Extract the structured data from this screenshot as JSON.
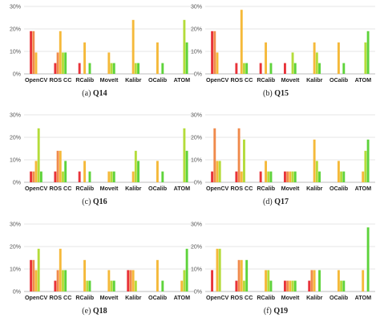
{
  "chart_data": [
    {
      "type": "bar",
      "caption_letter": "(a)",
      "caption_q": "Q14",
      "yticks": [
        "0%",
        "10%",
        "20%",
        "30%"
      ],
      "ylim": [
        0,
        30
      ],
      "categories": [
        "OpenCV",
        "ROS CC",
        "RCalib",
        "MoveIt",
        "Kalibr",
        "OCalib",
        "ATOM"
      ],
      "values": [
        [
          19,
          19,
          9.5,
          0,
          0
        ],
        [
          4.8,
          9.5,
          19,
          9.5,
          9.5
        ],
        [
          4.8,
          0,
          14,
          0,
          4.8
        ],
        [
          0,
          0,
          9.5,
          4.8,
          4.8
        ],
        [
          0,
          0,
          24,
          4.8,
          4.8
        ],
        [
          0,
          0,
          14,
          0,
          4.8
        ],
        [
          0,
          0,
          0,
          24,
          14
        ]
      ]
    },
    {
      "type": "bar",
      "caption_letter": "(b)",
      "caption_q": "Q15",
      "yticks": [
        "0%",
        "10%",
        "20%",
        "30%"
      ],
      "ylim": [
        0,
        30
      ],
      "categories": [
        "OpenCV",
        "ROS CC",
        "RCalib",
        "MoveIt",
        "Kalibr",
        "OCalib",
        "ATOM"
      ],
      "values": [
        [
          19,
          19,
          9.5,
          0,
          0
        ],
        [
          4.8,
          0,
          28.5,
          4.8,
          4.8
        ],
        [
          4.8,
          0,
          14,
          0,
          4.8
        ],
        [
          4.8,
          0,
          0,
          9.5,
          4.8
        ],
        [
          0,
          0,
          14,
          9.5,
          4.8
        ],
        [
          0,
          0,
          14,
          0,
          4.8
        ],
        [
          0,
          0,
          0,
          14,
          19
        ]
      ]
    },
    {
      "type": "bar",
      "caption_letter": "(c)",
      "caption_q": "Q16",
      "yticks": [
        "0%",
        "10%",
        "20%",
        "30%"
      ],
      "ylim": [
        0,
        30
      ],
      "categories": [
        "OpenCV",
        "ROS CC",
        "RCalib",
        "MoveIt",
        "Kalibr",
        "OCalib",
        "ATOM"
      ],
      "values": [
        [
          4.8,
          4.8,
          9.5,
          24,
          4.8
        ],
        [
          4.8,
          14,
          14,
          4.8,
          9.5
        ],
        [
          4.8,
          0,
          9.5,
          0,
          4.8
        ],
        [
          0,
          0,
          4.8,
          4.8,
          4.8
        ],
        [
          0,
          0,
          4.8,
          14,
          9.5
        ],
        [
          0,
          0,
          9.5,
          0,
          4.8
        ],
        [
          0,
          0,
          0,
          24,
          14
        ]
      ]
    },
    {
      "type": "bar",
      "caption_letter": "(d)",
      "caption_q": "Q17",
      "yticks": [
        "0%",
        "10%",
        "20%",
        "30%"
      ],
      "ylim": [
        0,
        30
      ],
      "categories": [
        "OpenCV",
        "ROS CC",
        "RCalib",
        "MoveIt",
        "Kalibr",
        "OCalib",
        "ATOM"
      ],
      "values": [
        [
          4.8,
          24,
          9.5,
          9.5,
          0
        ],
        [
          4.8,
          24,
          4.8,
          19,
          0
        ],
        [
          4.8,
          0,
          9.5,
          4.8,
          4.8
        ],
        [
          4.8,
          4.8,
          4.8,
          4.8,
          4.8
        ],
        [
          0,
          0,
          19,
          9.5,
          4.8
        ],
        [
          0,
          0,
          9.5,
          4.8,
          4.8
        ],
        [
          0,
          0,
          4.8,
          14,
          19
        ]
      ]
    },
    {
      "type": "bar",
      "caption_letter": "(e)",
      "caption_q": "Q18",
      "yticks": [
        "0%",
        "10%",
        "20%",
        "30%"
      ],
      "ylim": [
        0,
        30
      ],
      "categories": [
        "OpenCV",
        "ROS CC",
        "RCalib",
        "MoveIt",
        "Kalibr",
        "OCalib",
        "ATOM"
      ],
      "values": [
        [
          14,
          14,
          9.5,
          19,
          0
        ],
        [
          4.8,
          9.5,
          19,
          9.5,
          9.5
        ],
        [
          0,
          0,
          14,
          4.8,
          4.8
        ],
        [
          0,
          0,
          9.5,
          4.8,
          4.8
        ],
        [
          9.5,
          9.5,
          9.5,
          4.8,
          0
        ],
        [
          0,
          0,
          14,
          0,
          4.8
        ],
        [
          0,
          0,
          4.8,
          9.5,
          19
        ]
      ]
    },
    {
      "type": "bar",
      "caption_letter": "(f)",
      "caption_q": "Q19",
      "yticks": [
        "0%",
        "10%",
        "20%",
        "30%"
      ],
      "ylim": [
        0,
        30
      ],
      "categories": [
        "OpenCV",
        "ROS CC",
        "RCalib",
        "MoveIt",
        "Kalibr",
        "OCalib",
        "ATOM"
      ],
      "values": [
        [
          9.5,
          0,
          19,
          19,
          0
        ],
        [
          4.8,
          14,
          14,
          4.8,
          14
        ],
        [
          0,
          0,
          9.5,
          9.5,
          4.8
        ],
        [
          4.8,
          4.8,
          4.8,
          4.8,
          4.8
        ],
        [
          4.8,
          9.5,
          9.5,
          0,
          9.5
        ],
        [
          0,
          0,
          9.5,
          4.8,
          4.8
        ],
        [
          0,
          0,
          9.5,
          0,
          28.5
        ]
      ]
    }
  ],
  "colors": [
    "#e8333a",
    "#f08a4b",
    "#f5b93a",
    "#b4dc3a",
    "#5ed33b"
  ]
}
